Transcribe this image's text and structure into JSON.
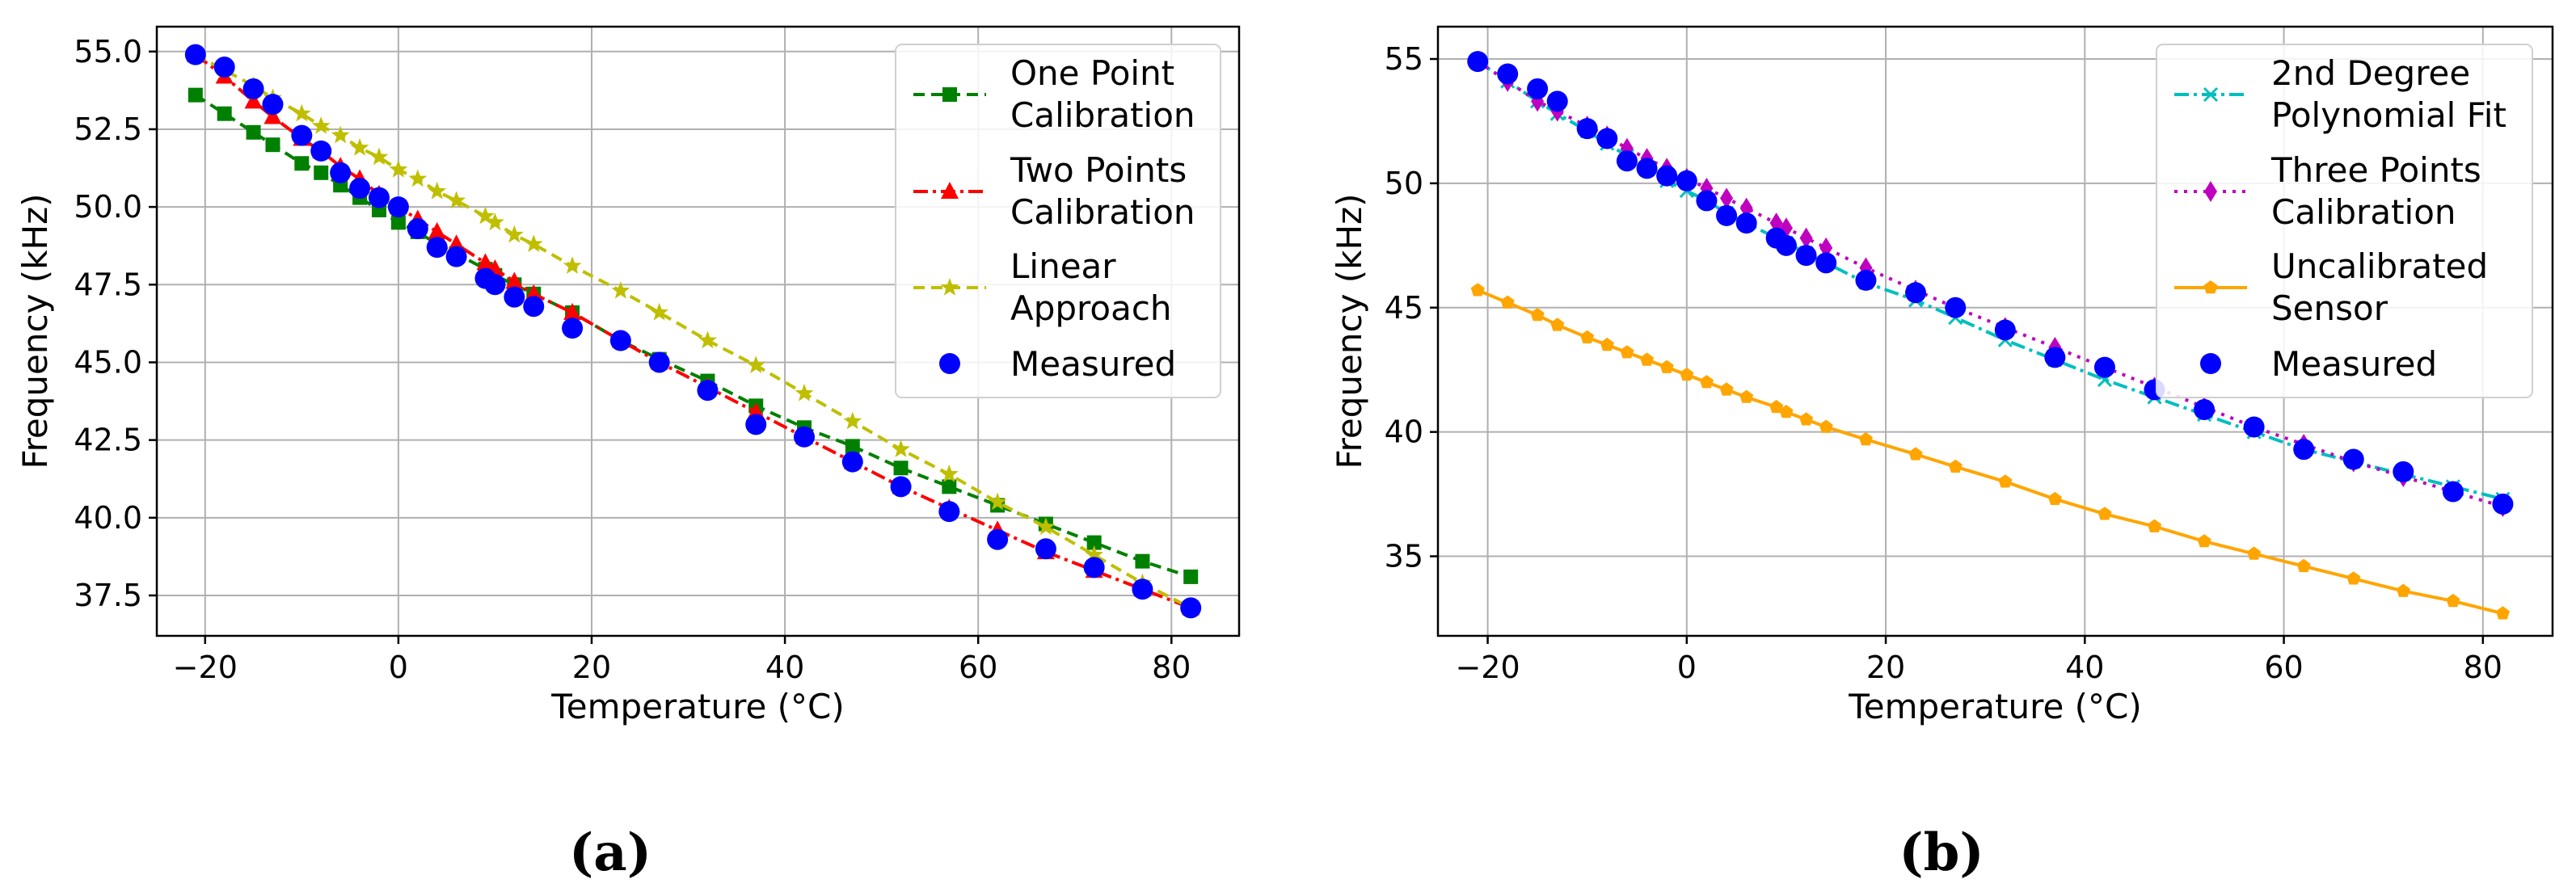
{
  "colors": {
    "green": "#008000",
    "red": "#ff0000",
    "olive": "#bfbf00",
    "blue": "#0000ff",
    "cyan": "#00bfbf",
    "magenta": "#bf00bf",
    "orange": "#ffa500"
  },
  "chart_data": [
    {
      "type": "line",
      "caption": "(a)",
      "xlabel": "Temperature (°C)",
      "ylabel": "Frequency (kHz)",
      "xlim": [
        -25,
        87
      ],
      "ylim": [
        36.2,
        55.8
      ],
      "xticks": [
        -20,
        0,
        20,
        40,
        60,
        80
      ],
      "xtick_labels": [
        "−20",
        "0",
        "20",
        "40",
        "60",
        "80"
      ],
      "yticks": [
        37.5,
        40.0,
        42.5,
        45.0,
        47.5,
        50.0,
        52.5,
        55.0
      ],
      "ytick_labels": [
        "37.5",
        "40.0",
        "42.5",
        "45.0",
        "47.5",
        "50.0",
        "52.5",
        "55.0"
      ],
      "grid": true,
      "legend_position": "top-right",
      "series": [
        {
          "name": "One Point Calibration",
          "color": "#008000",
          "marker": "square",
          "dash": "14,8",
          "x": [
            -21,
            -18,
            -15,
            -13,
            -10,
            -8,
            -6,
            -4,
            -2,
            0,
            2,
            4,
            6,
            9,
            10,
            12,
            14,
            18,
            23,
            27,
            32,
            37,
            42,
            47,
            52,
            57,
            62,
            67,
            72,
            77,
            82
          ],
          "y": [
            53.6,
            53.0,
            52.4,
            52.0,
            51.4,
            51.1,
            50.7,
            50.3,
            49.9,
            49.5,
            49.2,
            48.8,
            48.5,
            48.0,
            47.8,
            47.5,
            47.2,
            46.6,
            45.7,
            45.1,
            44.4,
            43.6,
            42.9,
            42.3,
            41.6,
            41.0,
            40.4,
            39.8,
            39.2,
            38.6,
            38.1
          ]
        },
        {
          "name": "Two Points Calibration",
          "color": "#ff0000",
          "marker": "triangle",
          "dash": "18,6,4,6",
          "x": [
            -21,
            -18,
            -15,
            -13,
            -10,
            -8,
            -6,
            -4,
            -2,
            0,
            2,
            4,
            6,
            9,
            10,
            12,
            14,
            18,
            23,
            27,
            32,
            37,
            42,
            47,
            52,
            57,
            62,
            67,
            72,
            77,
            82
          ],
          "y": [
            54.9,
            54.2,
            53.4,
            52.9,
            52.2,
            51.8,
            51.3,
            50.9,
            50.4,
            50.0,
            49.6,
            49.2,
            48.8,
            48.2,
            48.0,
            47.6,
            47.2,
            46.6,
            45.7,
            45.0,
            44.2,
            43.4,
            42.6,
            41.8,
            41.0,
            40.3,
            39.6,
            38.9,
            38.3,
            37.7,
            37.1
          ]
        },
        {
          "name": "Linear Approach",
          "color": "#bfbf00",
          "marker": "star",
          "dash": "14,8",
          "x": [
            -21,
            -18,
            -15,
            -13,
            -10,
            -8,
            -6,
            -4,
            -2,
            0,
            2,
            4,
            6,
            9,
            10,
            12,
            14,
            18,
            23,
            27,
            32,
            37,
            42,
            47,
            52,
            57,
            62,
            67,
            72,
            77,
            82
          ],
          "y": [
            54.9,
            54.4,
            53.9,
            53.5,
            53.0,
            52.6,
            52.3,
            51.9,
            51.6,
            51.2,
            50.9,
            50.5,
            50.2,
            49.7,
            49.5,
            49.1,
            48.8,
            48.1,
            47.3,
            46.6,
            45.7,
            44.9,
            44.0,
            43.1,
            42.2,
            41.4,
            40.5,
            39.7,
            38.8,
            37.9,
            37.1
          ]
        },
        {
          "name": "Measured",
          "color": "#0000ff",
          "marker": "circle",
          "dash": "none",
          "x": [
            -21,
            -18,
            -15,
            -13,
            -10,
            -8,
            -6,
            -4,
            -2,
            0,
            2,
            4,
            6,
            9,
            10,
            12,
            14,
            18,
            23,
            27,
            32,
            37,
            42,
            47,
            52,
            57,
            62,
            67,
            72,
            77,
            82
          ],
          "y": [
            54.9,
            54.5,
            53.8,
            53.3,
            52.3,
            51.8,
            51.1,
            50.6,
            50.3,
            50.0,
            49.3,
            48.7,
            48.4,
            47.7,
            47.5,
            47.1,
            46.8,
            46.1,
            45.7,
            45.0,
            44.1,
            43.0,
            42.6,
            41.8,
            41.0,
            40.2,
            39.3,
            39.0,
            38.4,
            37.7,
            37.1
          ]
        }
      ]
    },
    {
      "type": "line",
      "caption": "(b)",
      "xlabel": "Temperature (°C)",
      "ylabel": "Frequency (kHz)",
      "xlim": [
        -25,
        87
      ],
      "ylim": [
        31.8,
        56.3
      ],
      "xticks": [
        -20,
        0,
        20,
        40,
        60,
        80
      ],
      "xtick_labels": [
        "−20",
        "0",
        "20",
        "40",
        "60",
        "80"
      ],
      "yticks": [
        35,
        40,
        45,
        50,
        55
      ],
      "ytick_labels": [
        "35",
        "40",
        "45",
        "50",
        "55"
      ],
      "grid": true,
      "legend_position": "top-right",
      "series": [
        {
          "name": "2nd Degree Polynomial Fit",
          "color": "#00bfbf",
          "marker": "x",
          "dash": "18,6,4,6",
          "x": [
            -21,
            -18,
            -15,
            -13,
            -10,
            -8,
            -6,
            -4,
            -2,
            0,
            2,
            4,
            6,
            9,
            10,
            12,
            14,
            18,
            23,
            27,
            32,
            37,
            42,
            47,
            52,
            57,
            62,
            67,
            72,
            77,
            82
          ],
          "y": [
            54.9,
            54.1,
            53.3,
            52.8,
            52.1,
            51.6,
            51.1,
            50.6,
            50.1,
            49.7,
            49.3,
            48.8,
            48.4,
            47.8,
            47.6,
            47.2,
            46.8,
            46.0,
            45.3,
            44.6,
            43.7,
            42.9,
            42.1,
            41.4,
            40.7,
            40.0,
            39.3,
            38.8,
            38.3,
            37.8,
            37.3
          ]
        },
        {
          "name": "Three Points Calibration",
          "color": "#bf00bf",
          "marker": "diamond",
          "dash": "4,8",
          "x": [
            -21,
            -18,
            -15,
            -13,
            -10,
            -8,
            -6,
            -4,
            -2,
            0,
            2,
            4,
            6,
            9,
            10,
            12,
            14,
            18,
            23,
            27,
            32,
            37,
            42,
            47,
            52,
            57,
            62,
            67,
            72,
            77,
            82
          ],
          "y": [
            54.9,
            54.1,
            53.3,
            52.9,
            52.3,
            51.9,
            51.4,
            51.0,
            50.6,
            50.2,
            49.8,
            49.4,
            49.0,
            48.4,
            48.2,
            47.8,
            47.4,
            46.6,
            45.7,
            45.0,
            44.2,
            43.4,
            42.6,
            41.8,
            41.0,
            40.2,
            39.5,
            38.8,
            38.2,
            37.6,
            37.0
          ]
        },
        {
          "name": "Uncalibrated Sensor",
          "color": "#ffa500",
          "marker": "pentagon",
          "dash": "none",
          "x": [
            -21,
            -18,
            -15,
            -13,
            -10,
            -8,
            -6,
            -4,
            -2,
            0,
            2,
            4,
            6,
            9,
            10,
            12,
            14,
            18,
            23,
            27,
            32,
            37,
            42,
            47,
            52,
            57,
            62,
            67,
            72,
            77,
            82
          ],
          "y": [
            45.7,
            45.2,
            44.7,
            44.3,
            43.8,
            43.5,
            43.2,
            42.9,
            42.6,
            42.3,
            42.0,
            41.7,
            41.4,
            41.0,
            40.8,
            40.5,
            40.2,
            39.7,
            39.1,
            38.6,
            38.0,
            37.3,
            36.7,
            36.2,
            35.6,
            35.1,
            34.6,
            34.1,
            33.6,
            33.2,
            32.7
          ]
        },
        {
          "name": "Measured",
          "color": "#0000ff",
          "marker": "circle",
          "dash": "none",
          "x": [
            -21,
            -18,
            -15,
            -13,
            -10,
            -8,
            -6,
            -4,
            -2,
            0,
            2,
            4,
            6,
            9,
            10,
            12,
            14,
            18,
            23,
            27,
            32,
            37,
            42,
            47,
            52,
            57,
            62,
            67,
            72,
            77,
            82
          ],
          "y": [
            54.9,
            54.4,
            53.8,
            53.3,
            52.2,
            51.8,
            50.9,
            50.6,
            50.3,
            50.1,
            49.3,
            48.7,
            48.4,
            47.8,
            47.5,
            47.1,
            46.8,
            46.1,
            45.6,
            45.0,
            44.1,
            43.0,
            42.6,
            41.7,
            40.9,
            40.2,
            39.3,
            38.9,
            38.4,
            37.6,
            37.1
          ]
        }
      ]
    }
  ]
}
